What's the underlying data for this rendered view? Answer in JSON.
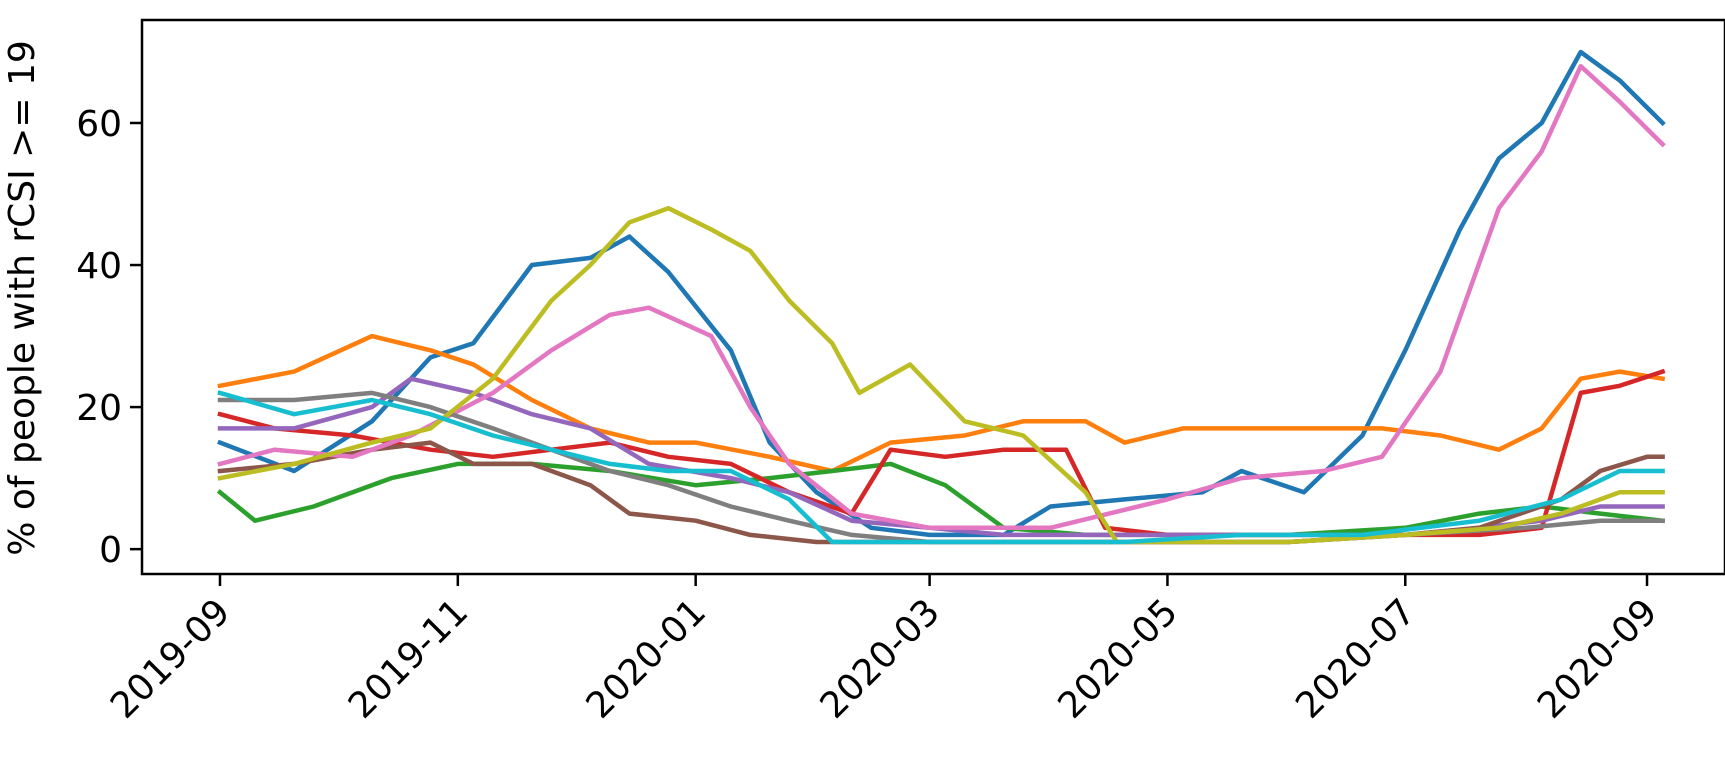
{
  "chart_data": {
    "type": "line",
    "title": "",
    "xlabel": "",
    "ylabel": "% of people with rCSI >= 19",
    "x_axis_type": "date",
    "xlim": [
      "2019-08-12",
      "2020-09-21"
    ],
    "ylim": [
      -3.5,
      74.5
    ],
    "x_ticks": [
      "2019-09",
      "2019-11",
      "2020-01",
      "2020-03",
      "2020-05",
      "2020-07",
      "2020-09"
    ],
    "x_tick_dates": [
      "2019-09-01",
      "2019-11-01",
      "2020-01-01",
      "2020-03-01",
      "2020-05-01",
      "2020-07-01",
      "2020-09-01"
    ],
    "y_ticks": [
      0,
      20,
      40,
      60
    ],
    "y_tick_labels": [
      "0",
      "20",
      "40",
      "60"
    ],
    "grid": false,
    "legend": "none",
    "series": [
      {
        "color": "#1f77b4",
        "points": [
          [
            "2019-09-01",
            15
          ],
          [
            "2019-09-20",
            11
          ],
          [
            "2019-10-10",
            18
          ],
          [
            "2019-10-25",
            27
          ],
          [
            "2019-11-05",
            29
          ],
          [
            "2019-11-20",
            40
          ],
          [
            "2019-12-05",
            41
          ],
          [
            "2019-12-15",
            44
          ],
          [
            "2019-12-25",
            39
          ],
          [
            "2020-01-10",
            28
          ],
          [
            "2020-01-20",
            15
          ],
          [
            "2020-02-01",
            8
          ],
          [
            "2020-02-15",
            3
          ],
          [
            "2020-03-01",
            2
          ],
          [
            "2020-03-20",
            2
          ],
          [
            "2020-04-01",
            6
          ],
          [
            "2020-04-20",
            7
          ],
          [
            "2020-05-10",
            8
          ],
          [
            "2020-05-20",
            11
          ],
          [
            "2020-06-05",
            8
          ],
          [
            "2020-06-20",
            16
          ],
          [
            "2020-07-01",
            28
          ],
          [
            "2020-07-15",
            45
          ],
          [
            "2020-07-25",
            55
          ],
          [
            "2020-08-05",
            60
          ],
          [
            "2020-08-15",
            70
          ],
          [
            "2020-08-25",
            66
          ],
          [
            "2020-09-05",
            60
          ]
        ]
      },
      {
        "color": "#ff7f0e",
        "points": [
          [
            "2019-09-01",
            23
          ],
          [
            "2019-09-20",
            25
          ],
          [
            "2019-10-10",
            30
          ],
          [
            "2019-10-25",
            28
          ],
          [
            "2019-11-05",
            26
          ],
          [
            "2019-11-20",
            21
          ],
          [
            "2019-12-05",
            17
          ],
          [
            "2019-12-20",
            15
          ],
          [
            "2020-01-01",
            15
          ],
          [
            "2020-01-20",
            13
          ],
          [
            "2020-02-05",
            11
          ],
          [
            "2020-02-20",
            15
          ],
          [
            "2020-03-10",
            16
          ],
          [
            "2020-03-25",
            18
          ],
          [
            "2020-04-10",
            18
          ],
          [
            "2020-04-20",
            15
          ],
          [
            "2020-05-05",
            17
          ],
          [
            "2020-05-25",
            17
          ],
          [
            "2020-06-10",
            17
          ],
          [
            "2020-06-25",
            17
          ],
          [
            "2020-07-10",
            16
          ],
          [
            "2020-07-25",
            14
          ],
          [
            "2020-08-05",
            17
          ],
          [
            "2020-08-15",
            24
          ],
          [
            "2020-08-25",
            25
          ],
          [
            "2020-09-05",
            24
          ]
        ]
      },
      {
        "color": "#2ca02c",
        "points": [
          [
            "2019-09-01",
            8
          ],
          [
            "2019-09-10",
            4
          ],
          [
            "2019-09-25",
            6
          ],
          [
            "2019-10-15",
            10
          ],
          [
            "2019-11-01",
            12
          ],
          [
            "2019-11-20",
            12
          ],
          [
            "2019-12-10",
            11
          ],
          [
            "2020-01-01",
            9
          ],
          [
            "2020-01-20",
            10
          ],
          [
            "2020-02-05",
            11
          ],
          [
            "2020-02-20",
            12
          ],
          [
            "2020-03-05",
            9
          ],
          [
            "2020-03-20",
            3
          ],
          [
            "2020-04-10",
            2
          ],
          [
            "2020-05-01",
            2
          ],
          [
            "2020-06-01",
            2
          ],
          [
            "2020-07-01",
            3
          ],
          [
            "2020-07-20",
            5
          ],
          [
            "2020-08-05",
            6
          ],
          [
            "2020-08-20",
            5
          ],
          [
            "2020-09-05",
            4
          ]
        ]
      },
      {
        "color": "#d62728",
        "points": [
          [
            "2019-09-01",
            19
          ],
          [
            "2019-09-15",
            17
          ],
          [
            "2019-10-05",
            16
          ],
          [
            "2019-10-25",
            14
          ],
          [
            "2019-11-10",
            13
          ],
          [
            "2019-11-25",
            14
          ],
          [
            "2019-12-10",
            15
          ],
          [
            "2019-12-25",
            13
          ],
          [
            "2020-01-10",
            12
          ],
          [
            "2020-01-25",
            8
          ],
          [
            "2020-02-10",
            5
          ],
          [
            "2020-02-20",
            14
          ],
          [
            "2020-03-05",
            13
          ],
          [
            "2020-03-20",
            14
          ],
          [
            "2020-04-05",
            14
          ],
          [
            "2020-04-15",
            3
          ],
          [
            "2020-05-01",
            2
          ],
          [
            "2020-05-20",
            2
          ],
          [
            "2020-06-10",
            2
          ],
          [
            "2020-07-01",
            2
          ],
          [
            "2020-07-20",
            2
          ],
          [
            "2020-08-05",
            3
          ],
          [
            "2020-08-15",
            22
          ],
          [
            "2020-08-25",
            23
          ],
          [
            "2020-09-05",
            25
          ]
        ]
      },
      {
        "color": "#9467bd",
        "points": [
          [
            "2019-09-01",
            17
          ],
          [
            "2019-09-20",
            17
          ],
          [
            "2019-10-10",
            20
          ],
          [
            "2019-10-20",
            24
          ],
          [
            "2019-11-05",
            22
          ],
          [
            "2019-11-20",
            19
          ],
          [
            "2019-12-05",
            17
          ],
          [
            "2019-12-20",
            12
          ],
          [
            "2020-01-10",
            10
          ],
          [
            "2020-01-25",
            8
          ],
          [
            "2020-02-10",
            4
          ],
          [
            "2020-03-01",
            3
          ],
          [
            "2020-03-20",
            2
          ],
          [
            "2020-04-10",
            2
          ],
          [
            "2020-05-01",
            2
          ],
          [
            "2020-06-01",
            2
          ],
          [
            "2020-07-01",
            2
          ],
          [
            "2020-07-20",
            3
          ],
          [
            "2020-08-05",
            4
          ],
          [
            "2020-08-20",
            6
          ],
          [
            "2020-09-05",
            6
          ]
        ]
      },
      {
        "color": "#8c564b",
        "points": [
          [
            "2019-09-01",
            11
          ],
          [
            "2019-09-20",
            12
          ],
          [
            "2019-10-10",
            14
          ],
          [
            "2019-10-25",
            15
          ],
          [
            "2019-11-05",
            12
          ],
          [
            "2019-11-20",
            12
          ],
          [
            "2019-12-05",
            9
          ],
          [
            "2019-12-15",
            5
          ],
          [
            "2020-01-01",
            4
          ],
          [
            "2020-01-15",
            2
          ],
          [
            "2020-02-01",
            1
          ],
          [
            "2020-03-01",
            1
          ],
          [
            "2020-04-01",
            1
          ],
          [
            "2020-05-01",
            1
          ],
          [
            "2020-06-01",
            1
          ],
          [
            "2020-07-01",
            2
          ],
          [
            "2020-07-20",
            3
          ],
          [
            "2020-08-10",
            7
          ],
          [
            "2020-08-20",
            11
          ],
          [
            "2020-09-01",
            13
          ],
          [
            "2020-09-05",
            13
          ]
        ]
      },
      {
        "color": "#e377c2",
        "points": [
          [
            "2019-09-01",
            12
          ],
          [
            "2019-09-15",
            14
          ],
          [
            "2019-10-05",
            13
          ],
          [
            "2019-10-20",
            16
          ],
          [
            "2019-11-10",
            22
          ],
          [
            "2019-11-25",
            28
          ],
          [
            "2019-12-10",
            33
          ],
          [
            "2019-12-20",
            34
          ],
          [
            "2020-01-05",
            30
          ],
          [
            "2020-01-15",
            20
          ],
          [
            "2020-01-25",
            12
          ],
          [
            "2020-02-10",
            5
          ],
          [
            "2020-03-01",
            3
          ],
          [
            "2020-04-01",
            3
          ],
          [
            "2020-05-01",
            7
          ],
          [
            "2020-05-20",
            10
          ],
          [
            "2020-06-10",
            11
          ],
          [
            "2020-06-25",
            13
          ],
          [
            "2020-07-10",
            25
          ],
          [
            "2020-07-25",
            48
          ],
          [
            "2020-08-05",
            56
          ],
          [
            "2020-08-15",
            68
          ],
          [
            "2020-08-25",
            63
          ],
          [
            "2020-09-05",
            57
          ]
        ]
      },
      {
        "color": "#7f7f7f",
        "points": [
          [
            "2019-09-01",
            21
          ],
          [
            "2019-09-20",
            21
          ],
          [
            "2019-10-10",
            22
          ],
          [
            "2019-10-25",
            20
          ],
          [
            "2019-11-10",
            17
          ],
          [
            "2019-11-25",
            14
          ],
          [
            "2019-12-10",
            11
          ],
          [
            "2019-12-25",
            9
          ],
          [
            "2020-01-10",
            6
          ],
          [
            "2020-01-25",
            4
          ],
          [
            "2020-02-10",
            2
          ],
          [
            "2020-03-01",
            1
          ],
          [
            "2020-04-01",
            1
          ],
          [
            "2020-05-01",
            1
          ],
          [
            "2020-06-01",
            1
          ],
          [
            "2020-07-01",
            2
          ],
          [
            "2020-08-01",
            3
          ],
          [
            "2020-08-20",
            4
          ],
          [
            "2020-09-05",
            4
          ]
        ]
      },
      {
        "color": "#bcbd22",
        "points": [
          [
            "2019-09-01",
            10
          ],
          [
            "2019-09-20",
            12
          ],
          [
            "2019-10-10",
            15
          ],
          [
            "2019-10-25",
            17
          ],
          [
            "2019-11-10",
            24
          ],
          [
            "2019-11-25",
            35
          ],
          [
            "2019-12-05",
            40
          ],
          [
            "2019-12-15",
            46
          ],
          [
            "2019-12-25",
            48
          ],
          [
            "2020-01-05",
            45
          ],
          [
            "2020-01-15",
            42
          ],
          [
            "2020-01-25",
            35
          ],
          [
            "2020-02-05",
            29
          ],
          [
            "2020-02-12",
            22
          ],
          [
            "2020-02-25",
            26
          ],
          [
            "2020-03-10",
            18
          ],
          [
            "2020-03-25",
            16
          ],
          [
            "2020-04-10",
            8
          ],
          [
            "2020-04-18",
            1
          ],
          [
            "2020-05-01",
            1
          ],
          [
            "2020-06-01",
            1
          ],
          [
            "2020-07-01",
            2
          ],
          [
            "2020-07-25",
            3
          ],
          [
            "2020-08-10",
            5
          ],
          [
            "2020-08-25",
            8
          ],
          [
            "2020-09-05",
            8
          ]
        ]
      },
      {
        "color": "#17becf",
        "points": [
          [
            "2019-09-01",
            22
          ],
          [
            "2019-09-20",
            19
          ],
          [
            "2019-10-10",
            21
          ],
          [
            "2019-10-25",
            19
          ],
          [
            "2019-11-10",
            16
          ],
          [
            "2019-11-25",
            14
          ],
          [
            "2019-12-10",
            12
          ],
          [
            "2019-12-25",
            11
          ],
          [
            "2020-01-10",
            11
          ],
          [
            "2020-01-25",
            7
          ],
          [
            "2020-02-05",
            1
          ],
          [
            "2020-02-20",
            1
          ],
          [
            "2020-03-20",
            1
          ],
          [
            "2020-04-20",
            1
          ],
          [
            "2020-05-20",
            2
          ],
          [
            "2020-06-20",
            2
          ],
          [
            "2020-07-20",
            4
          ],
          [
            "2020-08-10",
            7
          ],
          [
            "2020-08-25",
            11
          ],
          [
            "2020-09-05",
            11
          ]
        ]
      }
    ]
  }
}
